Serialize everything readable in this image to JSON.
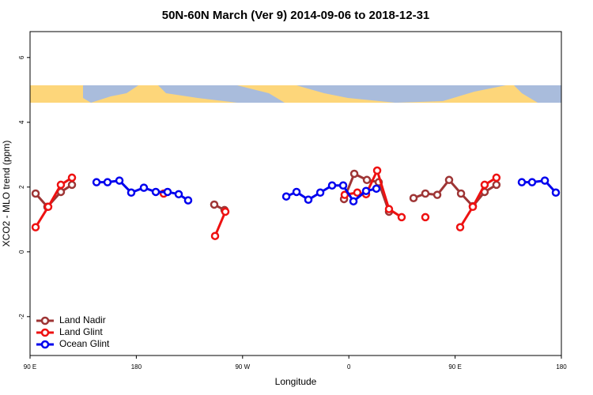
{
  "chart_data": {
    "type": "line",
    "title": "50N-60N March (Ver 9)   2014-09-06 to 2018-12-31",
    "x_label": "Longitude",
    "y_label": "XCO2 - MLO trend (ppm)",
    "xlim": [
      90,
      540
    ],
    "ylim": [
      -3.2,
      6.8
    ],
    "xticks": [
      {
        "value": 90,
        "label": "90 E"
      },
      180,
      {
        "value": 270,
        "label": "90 W"
      },
      {
        "value": 360,
        "label": "0"
      },
      {
        "value": 450,
        "label": "90 E"
      },
      {
        "value": 540,
        "label": "180"
      }
    ],
    "yticks": [
      -2,
      0,
      2,
      4,
      6
    ],
    "legend": "bottom-left",
    "series": [
      {
        "name": "Land Nadir",
        "color": "#9e3535",
        "x": [
          94.7,
          104.7,
          116.1,
          125.5,
          null,
          246,
          254.7,
          null,
          355.9,
          364.6,
          375.3,
          385.3,
          394,
          null,
          414.8,
          424.8,
          434.9,
          444.9,
          455,
          465,
          475,
          485
        ],
        "values": [
          1.8,
          1.39,
          1.85,
          2.07,
          null,
          1.46,
          1.29,
          null,
          1.63,
          2.41,
          2.22,
          2.15,
          1.24,
          null,
          1.66,
          1.8,
          1.76,
          2.22,
          1.8,
          1.41,
          1.85,
          2.07
        ]
      },
      {
        "name": "Land Glint",
        "color": "#ee1111",
        "x": [
          94.7,
          105.4,
          116.1,
          125.5,
          null,
          203.2,
          null,
          246.7,
          255.4,
          null,
          356.5,
          367.2,
          374.6,
          384,
          394,
          404.7,
          null,
          424.8,
          null,
          454.3,
          465,
          475,
          485
        ],
        "values": [
          0.76,
          1.39,
          2.07,
          2.29,
          null,
          1.8,
          null,
          0.49,
          1.24,
          null,
          1.76,
          1.83,
          1.78,
          2.51,
          1.32,
          1.07,
          null,
          1.07,
          null,
          0.76,
          1.39,
          2.07,
          2.29
        ]
      },
      {
        "name": "Ocean Glint",
        "color": "#0000ee",
        "x": [
          146.3,
          155.6,
          165.7,
          175.7,
          186.4,
          196.5,
          206.5,
          215.9,
          223.9,
          null,
          307,
          315.7,
          325.7,
          335.8,
          345.8,
          355.2,
          363.9,
          374.6,
          383.3,
          null,
          506.5,
          515.2,
          526,
          535.3
        ],
        "values": [
          2.15,
          2.15,
          2.2,
          1.83,
          1.98,
          1.85,
          1.85,
          1.78,
          1.59,
          null,
          1.71,
          1.85,
          1.61,
          1.83,
          2.05,
          2.05,
          1.56,
          1.88,
          1.95,
          null,
          2.15,
          2.15,
          2.2,
          1.83
        ]
      }
    ]
  }
}
